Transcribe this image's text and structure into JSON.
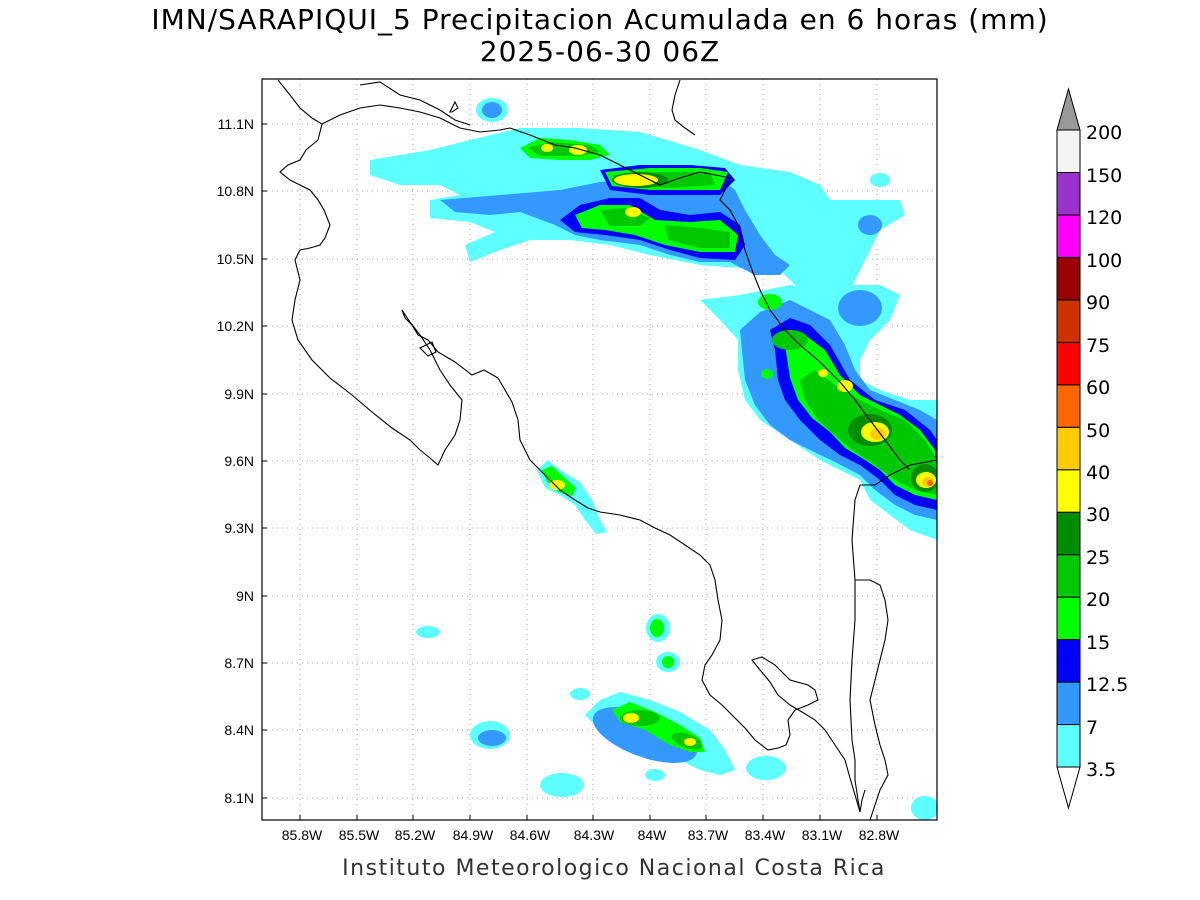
{
  "title": {
    "line1": "IMN/SARAPIQUI_5 Precipitacion Acumulada en 6 horas (mm)",
    "line2": "2025-06-30 06Z"
  },
  "credit": "Instituto Meteorologico Nacional Costa Rica",
  "map": {
    "lon_range": [
      -86.0,
      -82.6
    ],
    "lat_range": [
      8.0,
      11.3
    ],
    "x_ticks": [
      "85.8W",
      "85.5W",
      "85.2W",
      "84.9W",
      "84.6W",
      "84.3W",
      "84W",
      "83.7W",
      "83.4W",
      "83.1W",
      "82.8W"
    ],
    "y_ticks": [
      "11.1N",
      "10.8N",
      "10.5N",
      "10.2N",
      "9.9N",
      "9.6N",
      "9.3N",
      "9N",
      "8.7N",
      "8.4N",
      "8.1N"
    ],
    "grid": "dotted"
  },
  "colorbar": {
    "labels": [
      "3.5",
      "7",
      "12.5",
      "15",
      "20",
      "25",
      "30",
      "40",
      "50",
      "60",
      "75",
      "90",
      "100",
      "120",
      "150",
      "200"
    ],
    "colors": [
      "#ffffff",
      "#5effff",
      "#3399ff",
      "#0000ff",
      "#00ff00",
      "#00c800",
      "#008c00",
      "#ffff00",
      "#ffcc00",
      "#ff6600",
      "#ff0000",
      "#cc3300",
      "#990000",
      "#ff00ff",
      "#9933cc",
      "#f4f4f4",
      "#999999"
    ]
  }
}
